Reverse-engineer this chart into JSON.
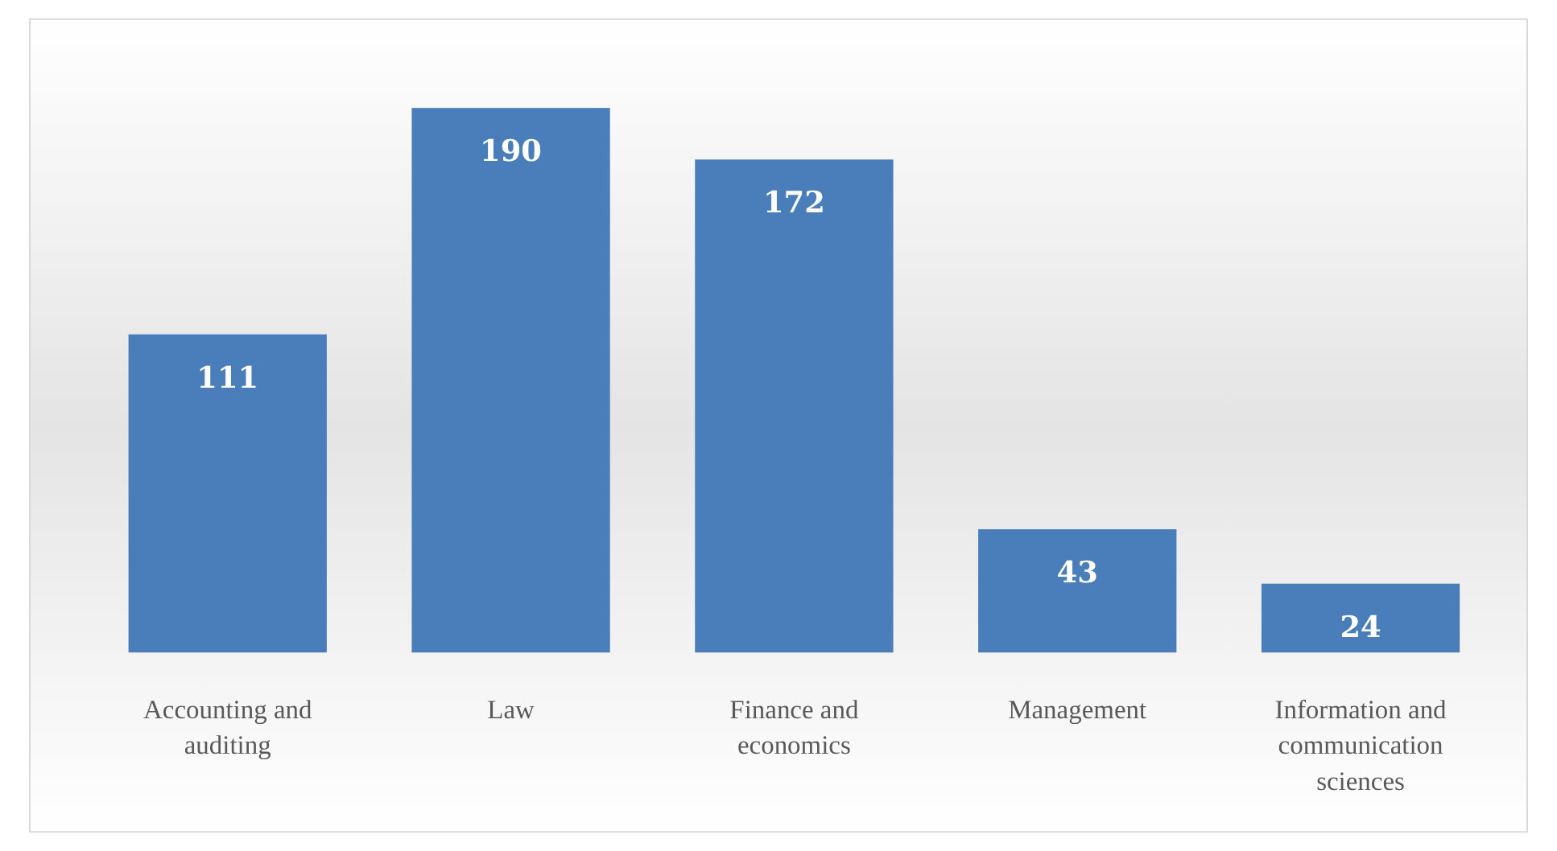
{
  "chart_data": {
    "type": "bar",
    "categories": [
      "Accounting and auditing",
      "Law",
      "Finance and economics",
      "Management",
      "Information and communication sciences"
    ],
    "values": [
      111,
      190,
      172,
      43,
      24
    ],
    "color": "#4a7ebb",
    "data_labels": true
  }
}
